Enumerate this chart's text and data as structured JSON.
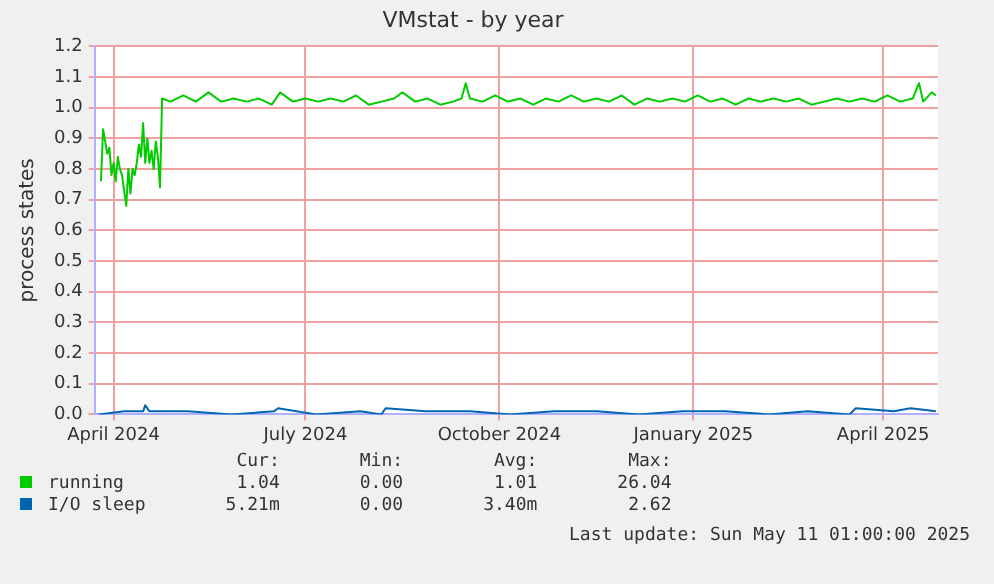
{
  "chart_data": {
    "type": "line",
    "title": "VMstat - by year",
    "ylabel": "process states",
    "xlim": [
      "2024-04-06",
      "2025-05-11"
    ],
    "xticks": [
      {
        "value": "2024-04-15",
        "label": "April 2024"
      },
      {
        "value": "2024-07-15",
        "label": "July 2024"
      },
      {
        "value": "2024-10-15",
        "label": "October 2024"
      },
      {
        "value": "2025-01-15",
        "label": "January 2025"
      },
      {
        "value": "2025-04-15",
        "label": "April 2025"
      }
    ],
    "ylim": [
      0,
      1.2
    ],
    "yticks": [
      {
        "value": 0,
        "label": "0.0"
      },
      {
        "value": 0.1,
        "label": "0.1"
      },
      {
        "value": 0.2,
        "label": "0.2"
      },
      {
        "value": 0.3,
        "label": "0.3"
      },
      {
        "value": 0.4,
        "label": "0.4"
      },
      {
        "value": 0.5,
        "label": "0.5"
      },
      {
        "value": 0.6,
        "label": "0.6"
      },
      {
        "value": 0.7,
        "label": "0.7"
      },
      {
        "value": 0.8,
        "label": "0.8"
      },
      {
        "value": 0.9,
        "label": "0.9"
      },
      {
        "value": 1,
        "label": "1.0"
      },
      {
        "value": 1.1,
        "label": "1.1"
      },
      {
        "value": 1.2,
        "label": "1.2"
      }
    ],
    "grid": true,
    "legend": "bottom",
    "marker": "none",
    "line_style": "solid",
    "series": [
      {
        "name": "running",
        "color": "#00cc00",
        "x": [
          "2024-04-09",
          "2024-04-10",
          "2024-04-12",
          "2024-04-13",
          "2024-04-14",
          "2024-04-15",
          "2024-04-16",
          "2024-04-17",
          "2024-04-18",
          "2024-04-19",
          "2024-04-20",
          "2024-04-21",
          "2024-04-22",
          "2024-04-23",
          "2024-04-24",
          "2024-04-25",
          "2024-04-26",
          "2024-04-27",
          "2024-04-28",
          "2024-04-29",
          "2024-04-30",
          "2024-05-01",
          "2024-05-02",
          "2024-05-03",
          "2024-05-04",
          "2024-05-05",
          "2024-05-06",
          "2024-05-07",
          "2024-05-08",
          "2024-05-12",
          "2024-05-18",
          "2024-05-24",
          "2024-05-30",
          "2024-06-05",
          "2024-06-11",
          "2024-06-17",
          "2024-06-23",
          "2024-06-29",
          "2024-07-03",
          "2024-07-09",
          "2024-07-15",
          "2024-07-21",
          "2024-07-27",
          "2024-08-02",
          "2024-08-08",
          "2024-08-14",
          "2024-08-20",
          "2024-08-26",
          "2024-08-30",
          "2024-09-05",
          "2024-09-11",
          "2024-09-17",
          "2024-09-23",
          "2024-09-27",
          "2024-09-29",
          "2024-10-01",
          "2024-10-07",
          "2024-10-13",
          "2024-10-19",
          "2024-10-25",
          "2024-10-31",
          "2024-11-06",
          "2024-11-12",
          "2024-11-18",
          "2024-11-24",
          "2024-11-30",
          "2024-12-06",
          "2024-12-12",
          "2024-12-18",
          "2024-12-24",
          "2024-12-30",
          "2025-01-05",
          "2025-01-11",
          "2025-01-17",
          "2025-01-23",
          "2025-01-29",
          "2025-02-04",
          "2025-02-10",
          "2025-02-16",
          "2025-02-22",
          "2025-02-28",
          "2025-03-06",
          "2025-03-12",
          "2025-03-18",
          "2025-03-24",
          "2025-03-30",
          "2025-04-05",
          "2025-04-11",
          "2025-04-17",
          "2025-04-23",
          "2025-04-29",
          "2025-05-02",
          "2025-05-04",
          "2025-05-08",
          "2025-05-10"
        ],
        "values": [
          0.76,
          0.93,
          0.85,
          0.87,
          0.78,
          0.82,
          0.76,
          0.84,
          0.8,
          0.78,
          0.73,
          0.68,
          0.8,
          0.72,
          0.8,
          0.78,
          0.82,
          0.88,
          0.84,
          0.95,
          0.82,
          0.9,
          0.82,
          0.86,
          0.8,
          0.89,
          0.84,
          0.74,
          1.03,
          1.02,
          1.04,
          1.02,
          1.05,
          1.02,
          1.03,
          1.02,
          1.03,
          1.01,
          1.05,
          1.02,
          1.03,
          1.02,
          1.03,
          1.02,
          1.04,
          1.01,
          1.02,
          1.03,
          1.05,
          1.02,
          1.03,
          1.01,
          1.02,
          1.03,
          1.08,
          1.03,
          1.02,
          1.04,
          1.02,
          1.03,
          1.01,
          1.03,
          1.02,
          1.04,
          1.02,
          1.03,
          1.02,
          1.04,
          1.01,
          1.03,
          1.02,
          1.03,
          1.02,
          1.04,
          1.02,
          1.03,
          1.01,
          1.03,
          1.02,
          1.03,
          1.02,
          1.03,
          1.01,
          1.02,
          1.03,
          1.02,
          1.03,
          1.02,
          1.04,
          1.02,
          1.03,
          1.08,
          1.02,
          1.05,
          1.04
        ]
      },
      {
        "name": "I/O sleep",
        "color": "#0066b3",
        "x": [
          "2024-04-08",
          "2024-04-20",
          "2024-04-29",
          "2024-04-30",
          "2024-05-02",
          "2024-05-20",
          "2024-06-10",
          "2024-06-30",
          "2024-07-02",
          "2024-07-20",
          "2024-08-10",
          "2024-08-20",
          "2024-08-22",
          "2024-09-10",
          "2024-10-01",
          "2024-10-20",
          "2024-11-10",
          "2024-11-30",
          "2024-12-20",
          "2025-01-10",
          "2025-01-30",
          "2025-02-20",
          "2025-03-10",
          "2025-03-30",
          "2025-04-02",
          "2025-04-20",
          "2025-04-28",
          "2025-05-10"
        ],
        "values": [
          0.0,
          0.01,
          0.01,
          0.03,
          0.01,
          0.01,
          0.0,
          0.01,
          0.02,
          0.0,
          0.01,
          0.0,
          0.02,
          0.01,
          0.01,
          0.0,
          0.01,
          0.01,
          0.0,
          0.01,
          0.01,
          0.0,
          0.01,
          0.0,
          0.02,
          0.01,
          0.02,
          0.01
        ]
      }
    ],
    "annotations": [
      "Cur:",
      "Min:",
      "Avg:",
      "Max:",
      "1.04",
      "0.00",
      "1.01",
      "26.04",
      "5.21m",
      "0.00",
      "3.40m",
      "2.62",
      "Last update: Sun May 11 01:00:00 2025"
    ]
  }
}
